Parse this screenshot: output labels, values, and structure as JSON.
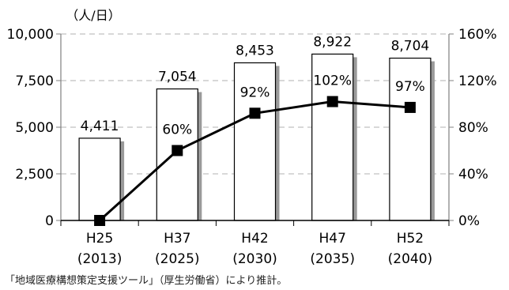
{
  "chart_data": {
    "type": "bar",
    "unit_label": "（人/日）",
    "categories": [
      "H25",
      "H37",
      "H42",
      "H47",
      "H52"
    ],
    "category_years": [
      "(2013)",
      "(2025)",
      "(2030)",
      "(2035)",
      "(2040)"
    ],
    "series": [
      {
        "values": [
          4411,
          7054,
          8453,
          8922,
          8704
        ],
        "labels": [
          "4,411",
          "7,054",
          "8,453",
          "8,922",
          "8,704"
        ],
        "axis": "left"
      },
      {
        "type": "line",
        "values": [
          0,
          60,
          92,
          102,
          97
        ],
        "labels": [
          "",
          "60%",
          "92%",
          "102%",
          "97%"
        ],
        "axis": "right"
      }
    ],
    "ylim": [
      0,
      10000
    ],
    "y_ticks": [
      0,
      2500,
      5000,
      7500,
      10000
    ],
    "y_tick_labels": [
      "0",
      "2,500",
      "5,000",
      "7,500",
      "10,000"
    ],
    "y2lim": [
      0,
      160
    ],
    "y2_ticks": [
      0,
      40,
      80,
      120,
      160
    ],
    "y2_tick_labels": [
      "0%",
      "40%",
      "80%",
      "120%",
      "160%"
    ],
    "grid": true,
    "colors": {
      "bar_fill": "#ffffff",
      "bar_stroke": "#000000",
      "bar_shadow": "#9a9a9a",
      "line": "#000000",
      "marker": "#000000",
      "grid": "#b0b0b0",
      "axis": "#808080"
    }
  },
  "source_note": "「地域医療構想策定支援ツール」（厚生労働省）により推計。"
}
